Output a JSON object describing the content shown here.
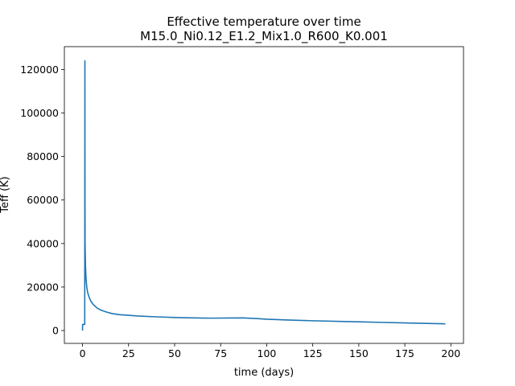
{
  "chart_data": {
    "type": "line",
    "title": "Effective temperature over time",
    "subtitle": "M15.0_Ni0.12_E1.2_Mix1.0_R600_K0.001",
    "xlabel": "time (days)",
    "ylabel": "Teff (K)",
    "xlim": [
      -9.85,
      206.85
    ],
    "ylim": [
      -5900,
      130500
    ],
    "xticks": [
      0,
      25,
      50,
      75,
      100,
      125,
      150,
      175,
      200
    ],
    "yticks": [
      0,
      20000,
      40000,
      60000,
      80000,
      100000,
      120000
    ],
    "grid": false,
    "series": [
      {
        "color": "#1f77b4",
        "x": [
          0,
          0.05,
          0.1,
          1.2,
          1.3,
          1.35,
          1.4,
          1.6,
          1.9,
          2.3,
          2.8,
          3.5,
          4.5,
          6,
          8,
          10,
          13,
          16,
          20,
          25,
          30,
          40,
          50,
          60,
          70,
          80,
          87,
          95,
          100,
          110,
          125,
          140,
          150,
          160,
          175,
          185,
          197
        ],
        "y": [
          0,
          2800,
          2800,
          2800,
          124000,
          60000,
          40000,
          30000,
          24000,
          20000,
          17500,
          15500,
          13500,
          11800,
          10300,
          9400,
          8500,
          7800,
          7300,
          7000,
          6700,
          6300,
          6000,
          5800,
          5700,
          5750,
          5800,
          5500,
          5200,
          4900,
          4500,
          4200,
          4000,
          3800,
          3500,
          3300,
          3100
        ]
      }
    ]
  }
}
